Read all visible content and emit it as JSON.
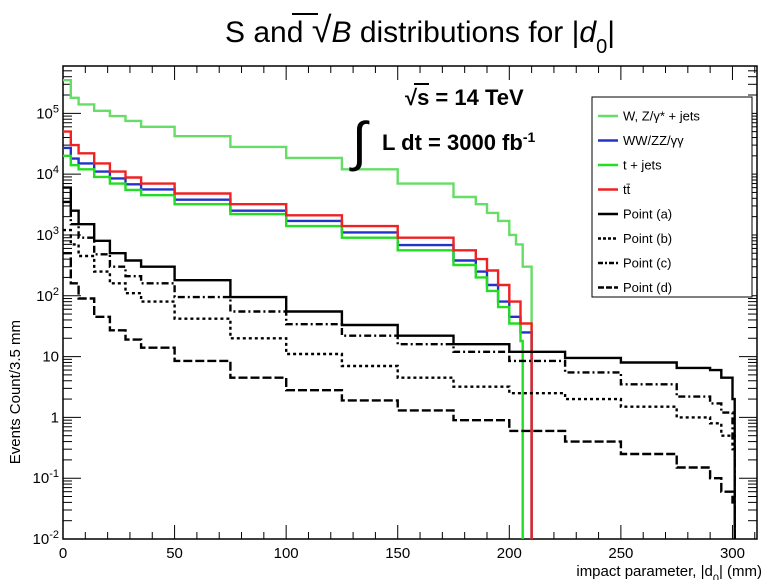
{
  "chart_data": {
    "type": "line",
    "title": {
      "prefix": "S and ",
      "sqrt_var": "B",
      "middle": " distributions for |",
      "var": "d",
      "sub": "0",
      "suffix": "|"
    },
    "xlabel": {
      "prefix": "impact parameter, |d",
      "sub": "0",
      "suffix": "| (mm)"
    },
    "ylabel": "Events Count/3.5 mm",
    "xlim": [
      0,
      311
    ],
    "ylim": [
      0.01,
      600000
    ],
    "yscale": "log",
    "grid": false,
    "legend_position": "top-right",
    "bin_width": 3.5,
    "xticks": [
      "0",
      "50",
      "100",
      "150",
      "200",
      "250",
      "300"
    ],
    "yticks": [
      {
        "base": "10",
        "exp": "-2",
        "value": 0.01
      },
      {
        "base": "10",
        "exp": "-1",
        "value": 0.1
      },
      {
        "base": "1",
        "exp": "",
        "value": 1
      },
      {
        "base": "10",
        "exp": "",
        "value": 10
      },
      {
        "base": "10",
        "exp": "2",
        "value": 100
      },
      {
        "base": "10",
        "exp": "3",
        "value": 1000
      },
      {
        "base": "10",
        "exp": "4",
        "value": 10000
      },
      {
        "base": "10",
        "exp": "5",
        "value": 100000
      }
    ],
    "annotations": {
      "energy_prefix": "√",
      "energy": "s = 14 TeV",
      "integral": "∫",
      "lumi": "L dt = 3000 fb",
      "lumi_exp": "-1"
    },
    "series": [
      {
        "name": "W, Z/γ* + jets",
        "color": "#66dd66",
        "dash": "solid",
        "x": [
          0,
          3.5,
          7,
          14,
          21,
          28,
          35,
          50,
          75,
          100,
          125,
          150,
          175,
          185,
          190,
          195,
          200,
          203,
          206,
          210
        ],
        "y": [
          350000,
          180000,
          140000,
          110000,
          90000,
          75000,
          60000,
          42000,
          28000,
          18500,
          12000,
          7000,
          4200,
          3200,
          2300,
          1700,
          1000,
          700,
          300,
          0.01
        ]
      },
      {
        "name": "WW/ZZ/γγ",
        "color": "#2233cc",
        "dash": "solid",
        "x": [
          0,
          3.5,
          7,
          14,
          21,
          28,
          35,
          50,
          75,
          100,
          125,
          150,
          175,
          185,
          190,
          195,
          200,
          205,
          210
        ],
        "y": [
          27000,
          18000,
          15000,
          11000,
          8500,
          6800,
          5600,
          3800,
          2500,
          1700,
          1100,
          680,
          380,
          250,
          150,
          80,
          45,
          25,
          0.01
        ]
      },
      {
        "name": "t + jets",
        "color": "#22dd22",
        "dash": "solid",
        "x": [
          0,
          3.5,
          7,
          14,
          21,
          28,
          35,
          50,
          75,
          100,
          125,
          150,
          175,
          185,
          190,
          195,
          200,
          205,
          206
        ],
        "y": [
          20000,
          14000,
          12000,
          9000,
          7000,
          5500,
          4500,
          3200,
          2200,
          1400,
          900,
          560,
          320,
          200,
          120,
          65,
          35,
          18,
          0.01
        ]
      },
      {
        "name": "tt̄",
        "color": "#ee2222",
        "dash": "solid",
        "x": [
          0,
          3.5,
          7,
          14,
          21,
          28,
          35,
          50,
          75,
          100,
          125,
          150,
          175,
          185,
          190,
          195,
          200,
          205,
          210
        ],
        "y": [
          50000,
          30000,
          22000,
          15000,
          11000,
          8800,
          7000,
          4800,
          3200,
          2100,
          1400,
          900,
          560,
          400,
          260,
          150,
          80,
          35,
          0.01
        ]
      },
      {
        "name": "Point (a)",
        "color": "#000000",
        "dash": "solid",
        "x": [
          0,
          3.5,
          7,
          14,
          21,
          28,
          35,
          50,
          75,
          100,
          125,
          150,
          175,
          200,
          225,
          250,
          275,
          290,
          295,
          300,
          301
        ],
        "y": [
          6000,
          2500,
          1500,
          800,
          500,
          380,
          300,
          180,
          95,
          55,
          33,
          22,
          16,
          12,
          9.5,
          8,
          6.5,
          6,
          4.5,
          2,
          0.01
        ]
      },
      {
        "name": "Point (b)",
        "color": "#000000",
        "dash": "3,3",
        "x": [
          0,
          3.5,
          7,
          14,
          21,
          28,
          35,
          50,
          75,
          100,
          125,
          150,
          175,
          200,
          225,
          250,
          275,
          290,
          295,
          300,
          301
        ],
        "y": [
          1200,
          700,
          450,
          250,
          160,
          110,
          80,
          42,
          20,
          11,
          7,
          4.5,
          3.2,
          2.5,
          2,
          1.5,
          1,
          0.8,
          0.5,
          0.3,
          0.01
        ]
      },
      {
        "name": "Point (c)",
        "color": "#000000",
        "dash": "7,3,2,3",
        "x": [
          0,
          3.5,
          7,
          14,
          21,
          28,
          35,
          50,
          75,
          100,
          125,
          150,
          175,
          200,
          225,
          250,
          275,
          290,
          295,
          300,
          301
        ],
        "y": [
          3500,
          1500,
          900,
          480,
          300,
          210,
          160,
          95,
          55,
          34,
          22,
          16,
          12,
          8.5,
          5.5,
          3.5,
          2.2,
          1.7,
          1.2,
          0.5,
          0.01
        ]
      },
      {
        "name": "Point (d)",
        "color": "#000000",
        "dash": "9,3",
        "x": [
          0,
          3.5,
          7,
          14,
          21,
          28,
          35,
          50,
          75,
          100,
          125,
          150,
          175,
          200,
          225,
          250,
          275,
          290,
          295,
          300,
          301
        ],
        "y": [
          500,
          160,
          90,
          45,
          27,
          19,
          14,
          8.5,
          4.5,
          2.8,
          1.9,
          1.3,
          0.9,
          0.6,
          0.4,
          0.25,
          0.15,
          0.1,
          0.06,
          0.04,
          0.01
        ]
      }
    ]
  }
}
